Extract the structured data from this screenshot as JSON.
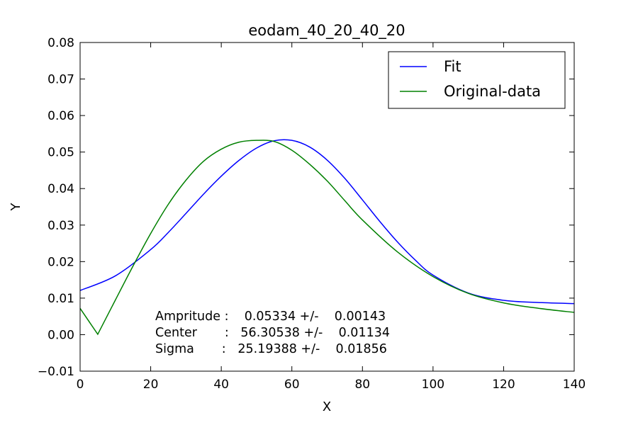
{
  "chart_data": {
    "type": "line",
    "title": "eodam_40_20_40_20",
    "xlabel": "X",
    "ylabel": "Y",
    "xlim": [
      0,
      140
    ],
    "ylim": [
      -0.01,
      0.08
    ],
    "grid": false,
    "legend_position": "top-right",
    "x_ticks": [
      0,
      20,
      40,
      60,
      80,
      100,
      120,
      140
    ],
    "x_tick_labels": [
      "0",
      "20",
      "40",
      "60",
      "80",
      "100",
      "120",
      "140"
    ],
    "y_ticks": [
      -0.01,
      0.0,
      0.01,
      0.02,
      0.03,
      0.04,
      0.05,
      0.06,
      0.07,
      0.08
    ],
    "y_tick_labels": [
      "−0.01",
      "0.00",
      "0.01",
      "0.02",
      "0.03",
      "0.04",
      "0.05",
      "0.06",
      "0.07",
      "0.08"
    ],
    "series": [
      {
        "name": "Fit",
        "color": "#0000ff",
        "x": [
          0,
          10,
          20,
          25,
          30,
          35,
          40,
          45,
          50,
          55,
          60,
          65,
          70,
          75,
          80,
          85,
          90,
          95,
          100,
          110,
          120,
          130,
          140
        ],
        "y": [
          0.0121,
          0.0161,
          0.0233,
          0.028,
          0.0332,
          0.0385,
          0.0434,
          0.0477,
          0.0511,
          0.0531,
          0.0532,
          0.0514,
          0.0478,
          0.0428,
          0.0369,
          0.0309,
          0.0253,
          0.0204,
          0.0163,
          0.0114,
          0.0094,
          0.0088,
          0.0085
        ]
      },
      {
        "name": "Original-data",
        "color": "#008000",
        "x": [
          0,
          5,
          10,
          15,
          20,
          25,
          30,
          35,
          40,
          45,
          50,
          55,
          60,
          65,
          70,
          75,
          80,
          90,
          100,
          110,
          120,
          130,
          140
        ],
        "y": [
          0.0072,
          0.0001,
          0.0095,
          0.0188,
          0.0277,
          0.0357,
          0.0423,
          0.0475,
          0.0508,
          0.0527,
          0.0532,
          0.0529,
          0.0505,
          0.0467,
          0.0421,
          0.0367,
          0.0314,
          0.0226,
          0.0159,
          0.0113,
          0.0087,
          0.0072,
          0.0061
        ]
      }
    ],
    "annotations": [
      "Ampritude :    0.05334 +/-    0.00143",
      "Center       :   56.30538 +/-    0.01134",
      "Sigma       :   25.19388 +/-    0.01856"
    ]
  }
}
